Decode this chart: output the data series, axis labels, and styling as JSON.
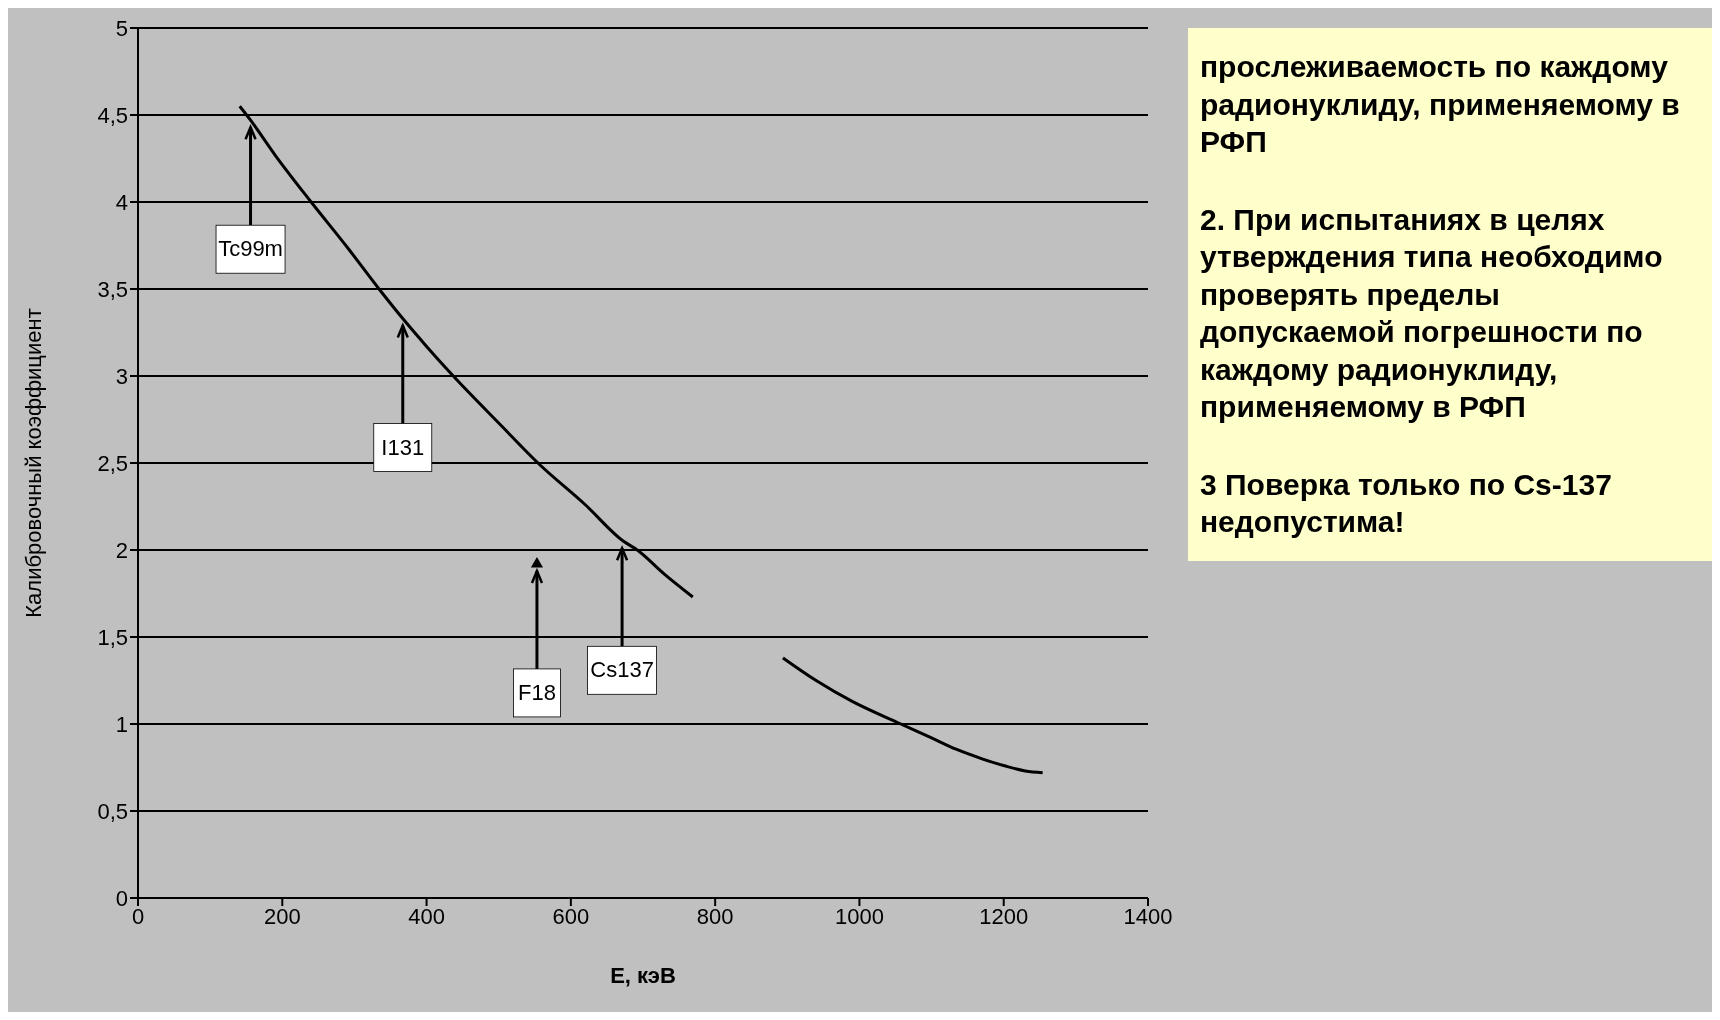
{
  "chart_data": {
    "type": "line",
    "xlabel": "E, кэВ",
    "ylabel": "Калибровочный коэффициент",
    "x": [
      141,
      156,
      190,
      240,
      290,
      336,
      367,
      400,
      437,
      500,
      557,
      620,
      673,
      692,
      730,
      769,
      830,
      894,
      940,
      990,
      1052,
      1100,
      1134,
      1170,
      1201,
      1230,
      1254
    ],
    "series": [
      {
        "color": "#000000",
        "values": [
          4.55,
          4.47,
          4.27,
          4.0,
          3.74,
          3.49,
          3.33,
          3.17,
          3.0,
          2.73,
          2.49,
          2.26,
          2.05,
          2.0,
          1.86,
          1.73,
          null,
          1.38,
          1.25,
          1.13,
          1.01,
          0.92,
          0.855,
          0.8,
          0.76,
          0.73,
          0.72
        ]
      },
      {
        "type": "scatter",
        "x": [
          553
        ],
        "values": [
          1.92
        ],
        "color": "#000000",
        "marker": "triangle"
      }
    ],
    "xlim": [
      0,
      1400
    ],
    "xticks": [
      0,
      200,
      400,
      600,
      800,
      1000,
      1200,
      1400
    ],
    "ylim": [
      0,
      5
    ],
    "yticks": [
      0,
      {
        "value": 0.5,
        "label": "0,5"
      },
      1,
      {
        "value": 1.5,
        "label": "1,5"
      },
      2,
      {
        "value": 2.5,
        "label": "2,5"
      },
      3,
      {
        "value": 3.5,
        "label": "3,5"
      },
      4,
      {
        "value": 4.5,
        "label": "4,5"
      },
      5
    ],
    "grid": "y",
    "marker": "none",
    "line_style": "solid",
    "annotations": [
      {
        "text": "Tc99m",
        "x": 156,
        "y": 4.47
      },
      {
        "text": "I131",
        "x": 367,
        "y": 3.33
      },
      {
        "text": "F18",
        "x": 553,
        "y": 1.92
      },
      {
        "text": "Cs137",
        "x": 671,
        "y": 2.05
      },
      "прослеживаемость по каждому радионуклиду, применяемому в РФП",
      "2. При испытаниях в целях утверждения типа необходимо проверять пределы допускаемой погрешности по каждому радионуклиду, применяемому в РФП",
      "3 Поверка только по Cs-137 недопустима!"
    ]
  }
}
